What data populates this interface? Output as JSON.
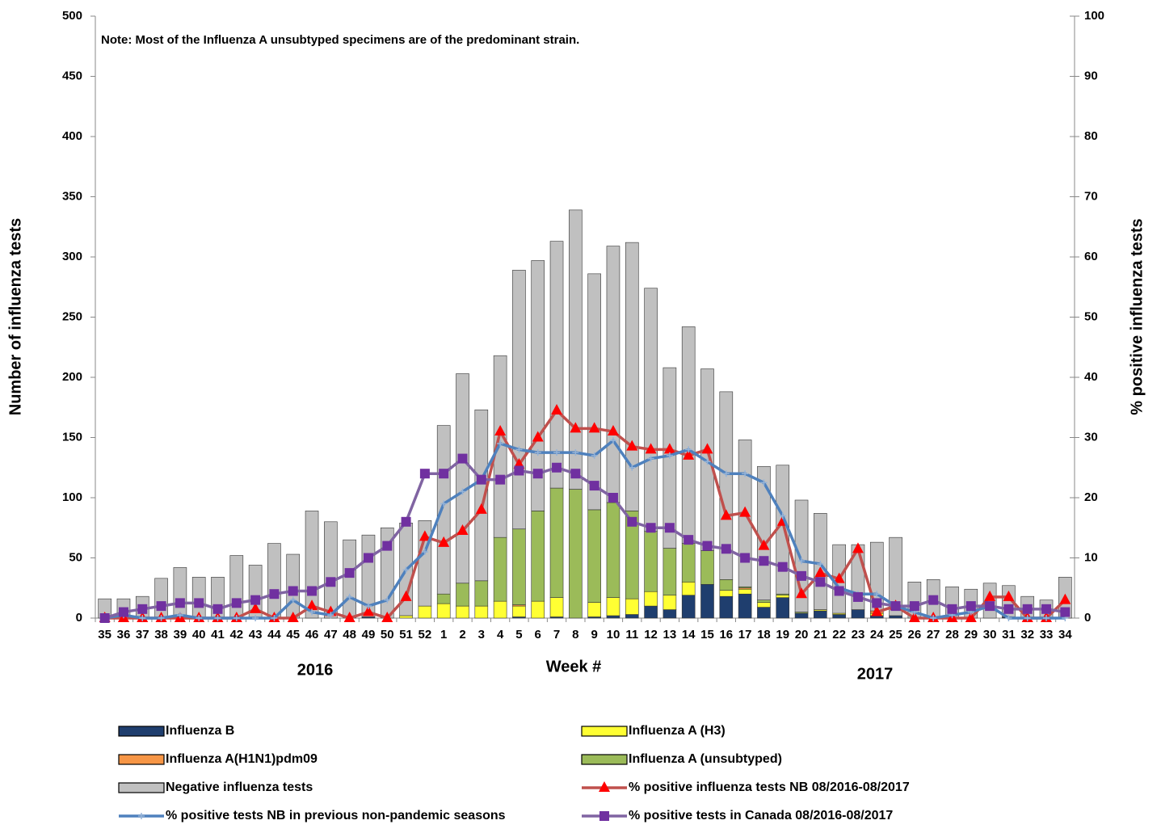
{
  "chart_data": {
    "type": "bar",
    "stacked": true,
    "y_label": "Number of influenza tests",
    "y2_label": "% positive influenza tests",
    "x_label": "Week #",
    "annotations": [
      "Note: Most of the  Influenza A unsubtyped specimens are of the predominant strain.",
      "2016",
      "2017"
    ],
    "categories": [
      "35",
      "36",
      "37",
      "38",
      "39",
      "40",
      "41",
      "42",
      "43",
      "44",
      "45",
      "46",
      "47",
      "48",
      "49",
      "50",
      "51",
      "52",
      "1",
      "2",
      "3",
      "4",
      "5",
      "6",
      "7",
      "8",
      "9",
      "10",
      "11",
      "12",
      "13",
      "14",
      "15",
      "16",
      "17",
      "18",
      "19",
      "20",
      "21",
      "22",
      "23",
      "24",
      "25",
      "26",
      "27",
      "28",
      "29",
      "30",
      "31",
      "32",
      "33",
      "34"
    ],
    "ylim": [
      0,
      500
    ],
    "yticks": [
      0,
      50,
      100,
      150,
      200,
      250,
      300,
      350,
      400,
      450,
      500
    ],
    "y2lim": [
      0,
      100
    ],
    "y2ticks": [
      0,
      10,
      20,
      30,
      40,
      50,
      60,
      70,
      80,
      90,
      100
    ],
    "series": [
      {
        "name": "Influenza B",
        "color": "#1f3e6e",
        "values": [
          0,
          0,
          0,
          0,
          0,
          0,
          0,
          0,
          0,
          0,
          0,
          0,
          0,
          0,
          1,
          0,
          0,
          0,
          0,
          0,
          0,
          0,
          1,
          0,
          1,
          0,
          1,
          2,
          3,
          10,
          7,
          19,
          28,
          18,
          20,
          9,
          17,
          4,
          6,
          3,
          7,
          2,
          2,
          0,
          0,
          0,
          0,
          0,
          1,
          0,
          0,
          0
        ]
      },
      {
        "name": "Influenza A (H3)",
        "color": "#ffff33",
        "values": [
          0,
          0,
          0,
          0,
          0,
          0,
          0,
          0,
          0,
          0,
          0,
          0,
          0,
          0,
          0,
          0,
          2,
          10,
          12,
          10,
          10,
          14,
          9,
          14,
          16,
          0,
          12,
          15,
          13,
          12,
          12,
          11,
          0,
          5,
          4,
          4,
          2,
          0,
          1,
          1,
          0,
          2,
          0,
          0,
          0,
          0,
          0,
          0,
          0,
          0,
          0,
          0
        ]
      },
      {
        "name": "Influenza A(H1N1)pdm09",
        "color": "#f79646",
        "values": [
          0,
          0,
          0,
          0,
          0,
          0,
          0,
          0,
          0,
          0,
          0,
          0,
          0,
          0,
          0,
          0,
          0,
          0,
          0,
          0,
          0,
          0,
          1,
          0,
          0,
          0,
          0,
          0,
          0,
          0,
          0,
          0,
          0,
          0,
          1,
          0,
          0,
          0,
          0,
          0,
          0,
          2,
          0,
          0,
          0,
          0,
          0,
          0,
          0,
          0,
          0,
          0
        ]
      },
      {
        "name": "Influenza A (unsubtyped)",
        "color": "#9bbb59",
        "values": [
          0,
          0,
          0,
          0,
          0,
          0,
          0,
          0,
          0,
          0,
          0,
          0,
          0,
          0,
          0,
          0,
          0,
          0,
          8,
          19,
          21,
          53,
          63,
          75,
          91,
          107,
          77,
          79,
          73,
          50,
          39,
          32,
          28,
          9,
          1,
          2,
          1,
          1,
          0,
          0,
          0,
          0,
          0,
          0,
          0,
          0,
          0,
          0,
          0,
          0,
          0,
          0
        ]
      },
      {
        "name": "Negative influenza tests",
        "color": "#c0c0c0",
        "values": [
          16,
          16,
          18,
          33,
          42,
          34,
          34,
          52,
          44,
          62,
          53,
          89,
          80,
          65,
          68,
          75,
          77,
          71,
          140,
          174,
          142,
          151,
          215,
          208,
          205,
          232,
          196,
          213,
          223,
          202,
          150,
          180,
          151,
          156,
          122,
          111,
          107,
          93,
          80,
          57,
          54,
          57,
          65,
          30,
          32,
          26,
          24,
          29,
          26,
          18,
          15,
          34
        ]
      },
      {
        "name": "% positive influenza tests NB 08/2016-08/2017",
        "color": "#c0504d",
        "marker": "triangle",
        "marker_color": "#ff0000",
        "axis": "y2",
        "values": [
          0,
          0,
          0,
          0,
          0,
          0,
          0,
          0,
          1.5,
          0,
          0,
          2,
          1,
          0,
          1,
          0,
          3.5,
          13.5,
          12.5,
          14.5,
          18,
          31,
          25.5,
          30,
          34.5,
          31.5,
          31.5,
          31,
          28.5,
          28,
          28,
          27,
          28,
          17,
          17.5,
          12,
          16,
          4,
          7.5,
          6.5,
          11.5,
          1,
          2,
          0,
          0,
          0,
          0,
          3.5,
          3.5,
          0,
          0,
          3
        ]
      },
      {
        "name": "% positive tests NB in previous non-pandemic seasons",
        "color": "#4f81bd",
        "marker": "plus",
        "marker_color": "#95b3d7",
        "axis": "y2",
        "values": [
          0,
          0.5,
          0,
          0,
          0.5,
          0,
          0,
          0,
          0,
          0,
          3,
          1,
          0.5,
          3.5,
          2,
          3,
          8,
          11,
          19,
          21,
          23,
          29,
          28,
          27.5,
          27.5,
          27.5,
          27,
          29.5,
          25,
          26.5,
          27,
          28,
          26,
          24,
          24,
          22.5,
          17,
          9.5,
          9,
          5,
          4,
          4,
          2,
          1,
          0,
          0.5,
          1,
          2,
          0,
          0,
          0,
          0
        ]
      },
      {
        "name": "% positive tests  in Canada 08/2016-08/2017",
        "color": "#8064a2",
        "marker": "square",
        "marker_color": "#7030a0",
        "axis": "y2",
        "values": [
          0,
          1,
          1.5,
          2,
          2.5,
          2.5,
          1.5,
          2.5,
          3,
          4,
          4.5,
          4.5,
          6,
          7.5,
          10,
          12,
          16,
          24,
          24,
          26.5,
          23,
          23,
          24.5,
          24,
          25,
          24,
          22,
          20,
          16,
          15,
          15,
          13,
          12,
          11.5,
          10,
          9.5,
          8.5,
          7,
          6,
          4.5,
          3.5,
          2.5,
          2,
          2,
          3,
          1.5,
          2,
          2,
          1.5,
          1.5,
          1.5,
          1
        ]
      }
    ]
  }
}
